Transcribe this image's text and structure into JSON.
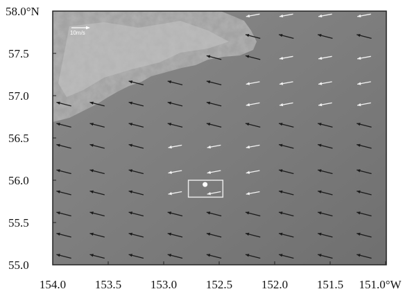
{
  "map": {
    "y_ticks": [
      "58.0°N",
      "57.5",
      "57.0",
      "56.5",
      "56.0",
      "55.5",
      "55.0"
    ],
    "x_ticks": [
      "154.0",
      "153.5",
      "153.0",
      "152.5",
      "152.0",
      "151.5",
      "151.0°W"
    ],
    "lat_range": [
      55.0,
      58.0
    ],
    "lon_range": [
      154.0,
      151.0
    ],
    "scale_label": "10m/s",
    "marker": {
      "lon": 152.63,
      "lat": 55.95,
      "box_lon": [
        152.78,
        152.47
      ],
      "box_lat": [
        56.0,
        55.8
      ]
    },
    "colors": {
      "frame": "#222222",
      "arrow_dark": "#1a1a1a",
      "arrow_light": "#f4f4f4",
      "box": "#e8e8e8"
    }
  }
}
